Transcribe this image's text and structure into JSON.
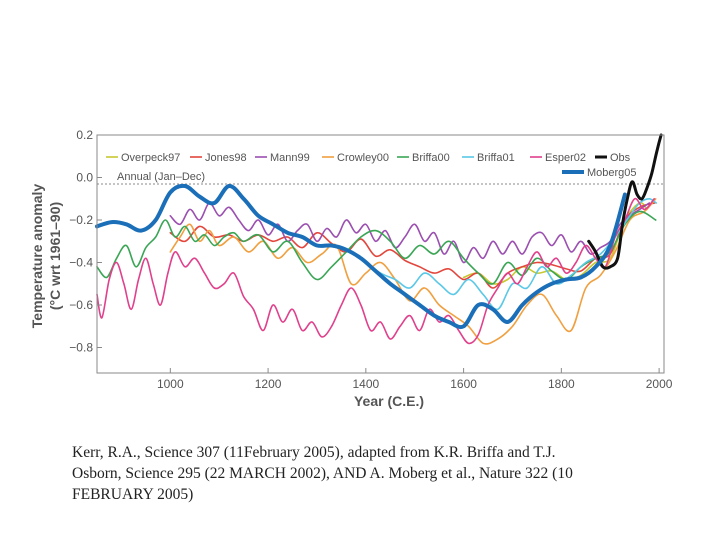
{
  "chart_data": {
    "type": "line",
    "xlabel": "Year (C.E.)",
    "ylabel_line1": "Temperature anomaly",
    "ylabel_line2": "(°C wrt 1961–90)",
    "xlim": [
      850,
      2010
    ],
    "ylim": [
      -0.92,
      0.2
    ],
    "xticks": [
      1000,
      1200,
      1400,
      1600,
      1800,
      2000
    ],
    "yticks": [
      0.2,
      0.0,
      -0.2,
      -0.4,
      -0.6,
      -0.8
    ],
    "ytick_labels": [
      "0.2",
      "0.0",
      "−0.2",
      "−0.4",
      "−0.6",
      "−0.8"
    ],
    "zero_line": "dashed",
    "legend_note": "Annual (Jan–Dec)",
    "legend_placement": "top",
    "series": [
      {
        "name": "Overpeck97",
        "color": "#c8c832",
        "width": 1.6,
        "x": [
          1600,
          1630,
          1660,
          1690,
          1720,
          1750,
          1780,
          1810,
          1840,
          1870,
          1900,
          1930,
          1960,
          1975
        ],
        "y": [
          -0.47,
          -0.45,
          -0.5,
          -0.48,
          -0.42,
          -0.45,
          -0.44,
          -0.48,
          -0.46,
          -0.4,
          -0.38,
          -0.2,
          -0.12,
          -0.15
        ]
      },
      {
        "name": "Jones98",
        "color": "#e2463c",
        "width": 1.6,
        "x": [
          1000,
          1030,
          1060,
          1090,
          1120,
          1150,
          1180,
          1210,
          1240,
          1270,
          1300,
          1330,
          1360,
          1390,
          1420,
          1450,
          1480,
          1510,
          1540,
          1570,
          1600,
          1630,
          1660,
          1690,
          1720,
          1750,
          1780,
          1810,
          1840,
          1870,
          1900,
          1930,
          1960,
          1991
        ],
        "y": [
          -0.26,
          -0.3,
          -0.23,
          -0.28,
          -0.27,
          -0.3,
          -0.27,
          -0.3,
          -0.28,
          -0.33,
          -0.26,
          -0.31,
          -0.35,
          -0.29,
          -0.37,
          -0.34,
          -0.39,
          -0.42,
          -0.45,
          -0.43,
          -0.48,
          -0.45,
          -0.52,
          -0.45,
          -0.42,
          -0.4,
          -0.41,
          -0.43,
          -0.44,
          -0.38,
          -0.36,
          -0.2,
          -0.14,
          -0.12
        ]
      },
      {
        "name": "Mann99",
        "color": "#9b4fb0",
        "width": 1.6,
        "x": [
          1000,
          1020,
          1040,
          1060,
          1080,
          1100,
          1120,
          1140,
          1160,
          1180,
          1200,
          1220,
          1240,
          1260,
          1280,
          1300,
          1320,
          1340,
          1360,
          1380,
          1400,
          1420,
          1440,
          1460,
          1480,
          1500,
          1520,
          1540,
          1560,
          1580,
          1600,
          1620,
          1640,
          1660,
          1680,
          1700,
          1720,
          1740,
          1760,
          1780,
          1800,
          1820,
          1840,
          1860,
          1880,
          1900,
          1920,
          1940,
          1960,
          1980
        ],
        "y": [
          -0.18,
          -0.22,
          -0.15,
          -0.2,
          -0.12,
          -0.18,
          -0.14,
          -0.2,
          -0.25,
          -0.2,
          -0.27,
          -0.22,
          -0.3,
          -0.25,
          -0.22,
          -0.3,
          -0.24,
          -0.28,
          -0.2,
          -0.26,
          -0.22,
          -0.3,
          -0.25,
          -0.33,
          -0.28,
          -0.22,
          -0.3,
          -0.26,
          -0.36,
          -0.3,
          -0.4,
          -0.33,
          -0.38,
          -0.3,
          -0.36,
          -0.3,
          -0.36,
          -0.28,
          -0.26,
          -0.32,
          -0.27,
          -0.35,
          -0.3,
          -0.36,
          -0.33,
          -0.3,
          -0.22,
          -0.18,
          -0.15,
          -0.12
        ]
      },
      {
        "name": "Crowley00",
        "color": "#f0a040",
        "width": 1.6,
        "x": [
          1000,
          1020,
          1040,
          1060,
          1080,
          1100,
          1130,
          1160,
          1190,
          1220,
          1250,
          1280,
          1310,
          1340,
          1370,
          1400,
          1430,
          1460,
          1490,
          1520,
          1550,
          1580,
          1610,
          1640,
          1670,
          1700,
          1730,
          1760,
          1790,
          1820,
          1850,
          1880,
          1910,
          1940,
          1970,
          1993
        ],
        "y": [
          -0.35,
          -0.28,
          -0.22,
          -0.3,
          -0.25,
          -0.32,
          -0.28,
          -0.35,
          -0.3,
          -0.38,
          -0.33,
          -0.4,
          -0.36,
          -0.32,
          -0.5,
          -0.45,
          -0.4,
          -0.48,
          -0.58,
          -0.52,
          -0.6,
          -0.65,
          -0.7,
          -0.78,
          -0.76,
          -0.7,
          -0.6,
          -0.55,
          -0.65,
          -0.72,
          -0.52,
          -0.46,
          -0.35,
          -0.2,
          -0.16,
          -0.1
        ]
      },
      {
        "name": "Briffa00",
        "color": "#3aa655",
        "width": 1.6,
        "x": [
          850,
          870,
          890,
          910,
          930,
          950,
          970,
          990,
          1010,
          1030,
          1050,
          1070,
          1090,
          1110,
          1130,
          1150,
          1180,
          1210,
          1240,
          1270,
          1300,
          1330,
          1360,
          1390,
          1420,
          1450,
          1480,
          1510,
          1540,
          1570,
          1600,
          1630,
          1660,
          1690,
          1720,
          1750,
          1780,
          1810,
          1840,
          1870,
          1900,
          1930,
          1960,
          1993
        ],
        "y": [
          -0.42,
          -0.47,
          -0.38,
          -0.32,
          -0.42,
          -0.33,
          -0.28,
          -0.2,
          -0.28,
          -0.23,
          -0.3,
          -0.27,
          -0.32,
          -0.28,
          -0.26,
          -0.3,
          -0.27,
          -0.35,
          -0.3,
          -0.4,
          -0.48,
          -0.42,
          -0.35,
          -0.28,
          -0.25,
          -0.3,
          -0.38,
          -0.32,
          -0.36,
          -0.3,
          -0.38,
          -0.45,
          -0.5,
          -0.4,
          -0.46,
          -0.38,
          -0.44,
          -0.48,
          -0.42,
          -0.38,
          -0.35,
          -0.22,
          -0.16,
          -0.2
        ]
      },
      {
        "name": "Briffa01",
        "color": "#5ac8e6",
        "width": 1.6,
        "x": [
          1400,
          1430,
          1460,
          1490,
          1520,
          1550,
          1580,
          1610,
          1640,
          1670,
          1700,
          1730,
          1760,
          1790,
          1820,
          1850,
          1880,
          1910,
          1940,
          1960,
          1980,
          1994
        ],
        "y": [
          -0.4,
          -0.45,
          -0.48,
          -0.52,
          -0.45,
          -0.5,
          -0.55,
          -0.48,
          -0.55,
          -0.62,
          -0.5,
          -0.52,
          -0.42,
          -0.5,
          -0.46,
          -0.4,
          -0.36,
          -0.28,
          -0.18,
          -0.12,
          -0.1,
          -0.12
        ]
      },
      {
        "name": "Esper02",
        "color": "#e0408c",
        "width": 1.6,
        "x": [
          850,
          860,
          875,
          890,
          905,
          920,
          935,
          950,
          965,
          980,
          995,
          1010,
          1030,
          1050,
          1070,
          1090,
          1110,
          1130,
          1150,
          1170,
          1190,
          1210,
          1230,
          1250,
          1270,
          1290,
          1310,
          1330,
          1350,
          1370,
          1390,
          1410,
          1430,
          1450,
          1470,
          1490,
          1510,
          1530,
          1550,
          1570,
          1590,
          1610,
          1630,
          1650,
          1670,
          1690,
          1710,
          1730,
          1750,
          1770,
          1790,
          1810,
          1830,
          1850,
          1870,
          1890,
          1910,
          1930,
          1950,
          1970,
          1990
        ],
        "y": [
          -0.55,
          -0.66,
          -0.48,
          -0.4,
          -0.5,
          -0.62,
          -0.48,
          -0.38,
          -0.5,
          -0.6,
          -0.45,
          -0.35,
          -0.42,
          -0.38,
          -0.45,
          -0.52,
          -0.5,
          -0.45,
          -0.56,
          -0.62,
          -0.72,
          -0.6,
          -0.68,
          -0.62,
          -0.72,
          -0.68,
          -0.75,
          -0.7,
          -0.6,
          -0.52,
          -0.6,
          -0.72,
          -0.68,
          -0.76,
          -0.7,
          -0.65,
          -0.72,
          -0.62,
          -0.68,
          -0.65,
          -0.72,
          -0.78,
          -0.74,
          -0.6,
          -0.52,
          -0.45,
          -0.5,
          -0.42,
          -0.35,
          -0.42,
          -0.38,
          -0.45,
          -0.4,
          -0.32,
          -0.38,
          -0.42,
          -0.28,
          -0.2,
          -0.1,
          -0.15,
          -0.1
        ]
      },
      {
        "name": "Obs",
        "color": "#111111",
        "width": 3,
        "x": [
          1856,
          1870,
          1885,
          1900,
          1915,
          1925,
          1935,
          1945,
          1955,
          1965,
          1975,
          1985,
          1995,
          2004
        ],
        "y": [
          -0.3,
          -0.35,
          -0.42,
          -0.42,
          -0.38,
          -0.22,
          -0.1,
          -0.02,
          -0.08,
          -0.1,
          -0.05,
          0.02,
          0.12,
          0.2
        ]
      },
      {
        "name": "Moberg05",
        "color": "#1a6fb8",
        "width": 4,
        "x": [
          850,
          880,
          910,
          940,
          970,
          1000,
          1030,
          1060,
          1090,
          1120,
          1150,
          1180,
          1210,
          1240,
          1270,
          1300,
          1330,
          1360,
          1390,
          1420,
          1450,
          1480,
          1510,
          1540,
          1570,
          1600,
          1630,
          1660,
          1690,
          1720,
          1750,
          1780,
          1810,
          1840,
          1870,
          1900,
          1930
        ],
        "y": [
          -0.23,
          -0.21,
          -0.22,
          -0.25,
          -0.2,
          -0.07,
          -0.04,
          -0.09,
          -0.12,
          -0.04,
          -0.1,
          -0.18,
          -0.22,
          -0.26,
          -0.28,
          -0.32,
          -0.32,
          -0.34,
          -0.38,
          -0.44,
          -0.5,
          -0.55,
          -0.6,
          -0.65,
          -0.68,
          -0.7,
          -0.6,
          -0.62,
          -0.68,
          -0.6,
          -0.54,
          -0.5,
          -0.48,
          -0.47,
          -0.42,
          -0.32,
          -0.08
        ]
      }
    ]
  },
  "caption": {
    "line1": "Kerr, R.A., Science 307 (11February 2005), adapted from K.R. Briffa and T.J.",
    "line2": "Osborn,  Science 295 (22 MARCH 2002), AND A. Moberg et al., Nature 322 (10",
    "line3": "FEBRUARY 2005)"
  }
}
